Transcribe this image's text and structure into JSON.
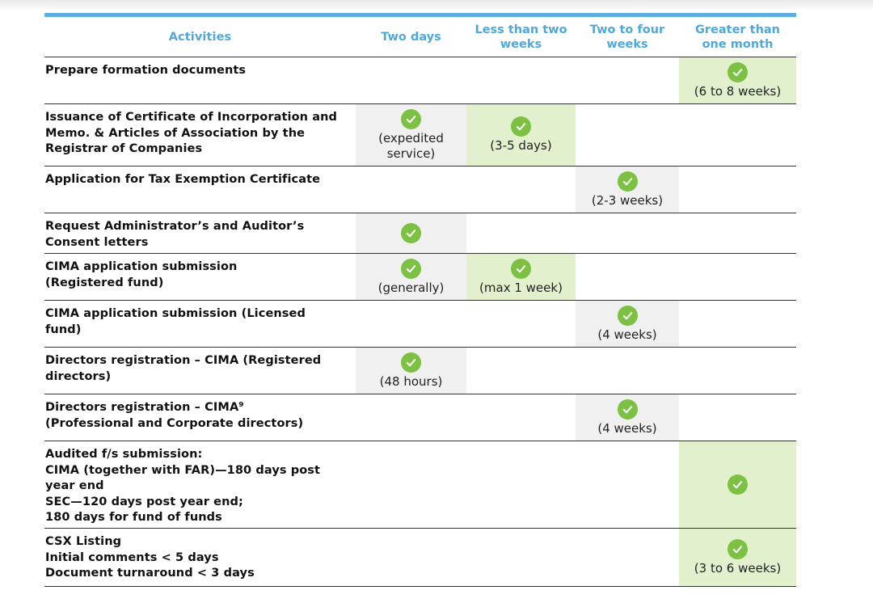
{
  "headers": {
    "activities": "Activities",
    "two_days": "Two days",
    "less_than_two_weeks": "Less than two\nweeks",
    "two_to_four_weeks": "Two to four\nweeks",
    "greater_than_one_month": "Greater than\none month"
  },
  "rows": [
    {
      "activity": "Prepare formation documents",
      "marks": [
        null,
        null,
        null,
        {
          "note": "(6 to 8 weeks)"
        }
      ]
    },
    {
      "activity": "Issuance of Certificate of Incorporation and\nMemo. & Articles of Association by the\nRegistrar of Companies",
      "marks": [
        {
          "note": "(expedited\nservice)"
        },
        {
          "note": "(3-5 days)"
        },
        null,
        null
      ]
    },
    {
      "activity": "Application for Tax Exemption Certificate",
      "marks": [
        null,
        null,
        {
          "note": "(2-3 weeks)"
        },
        null
      ]
    },
    {
      "activity": "Request Administrator’s and Auditor’s\nConsent letters",
      "marks": [
        {
          "note": ""
        },
        null,
        null,
        null
      ]
    },
    {
      "activity": "CIMA application submission\n(Registered fund)",
      "marks": [
        {
          "note": "(generally)"
        },
        {
          "note": "(max 1 week)"
        },
        null,
        null
      ]
    },
    {
      "activity": "CIMA application submission (Licensed\nfund)",
      "marks": [
        null,
        null,
        {
          "note": "(4 weeks)"
        },
        null
      ]
    },
    {
      "activity": "Directors registration – CIMA (Registered\ndirectors)",
      "marks": [
        {
          "note": "(48 hours)"
        },
        null,
        null,
        null
      ]
    },
    {
      "activity": "Directors registration – CIMA⁹\n(Professional and Corporate directors)",
      "marks": [
        null,
        null,
        {
          "note": "(4 weeks)"
        },
        null
      ]
    },
    {
      "activity": "Audited f/s submission:\nCIMA (together with FAR)—180 days post\nyear end\nSEC—120 days post year end;\n180 days for fund of funds",
      "marks": [
        null,
        null,
        null,
        {
          "note": ""
        }
      ]
    },
    {
      "activity": "CSX Listing\nInitial comments < 5 days\nDocument turnaround < 3 days",
      "marks": [
        null,
        null,
        null,
        {
          "note": "(3 to 6 weeks)"
        }
      ]
    }
  ],
  "colors": {
    "header_text": "#4fa8dc",
    "top_rule": "#5aaee0",
    "check": "#7cc143",
    "grey_cell": "#f0f0f0",
    "green_cell": "#e2f0cd"
  },
  "icons": {
    "check": "check-circle-icon"
  }
}
